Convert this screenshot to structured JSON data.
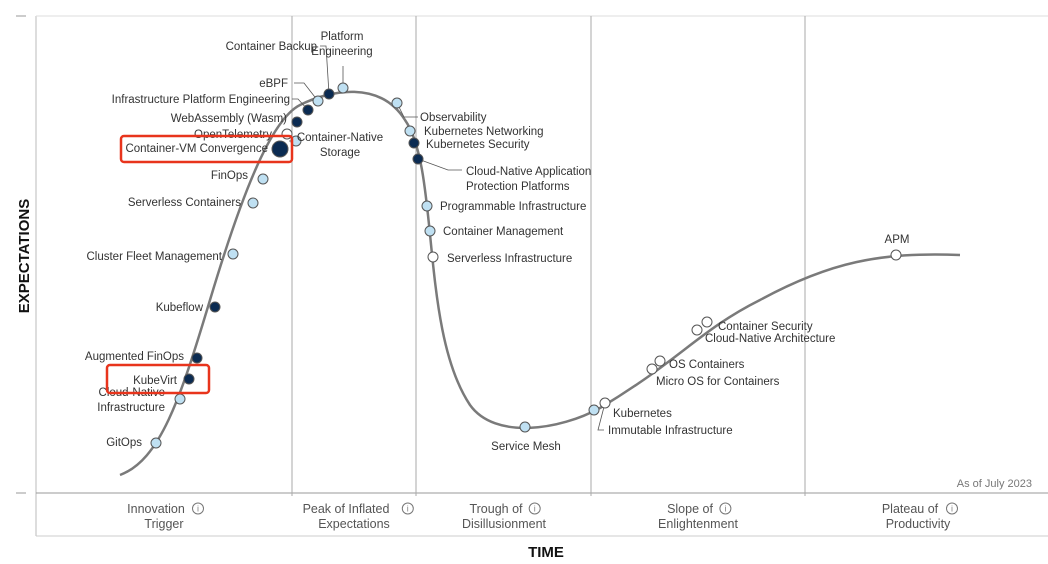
{
  "chart_data": {
    "type": "scatter",
    "xlabel": "TIME",
    "ylabel": "EXPECTATIONS",
    "as_of": "As of July 2023",
    "phases": [
      {
        "line1": "Innovation",
        "line2": "Trigger"
      },
      {
        "line1": "Peak of Inflated",
        "line2": "Expectations"
      },
      {
        "line1": "Trough of",
        "line2": "Disillusionment"
      },
      {
        "line1": "Slope of",
        "line2": "Enlightenment"
      },
      {
        "line1": "Plateau of",
        "line2": "Productivity"
      }
    ],
    "colors": {
      "curve": "#7a7a7a",
      "dark": "#0b2b52",
      "light": "#bfe0f2",
      "white": "#ffffff",
      "highlight": "#e8341c"
    },
    "points": [
      {
        "label": "GitOps",
        "type": "light"
      },
      {
        "label": "Cloud-Native\nInfrastructure",
        "type": "light"
      },
      {
        "label": "KubeVirt",
        "type": "dark",
        "highlight": true
      },
      {
        "label": "Augmented FinOps",
        "type": "dark"
      },
      {
        "label": "Kubeflow",
        "type": "dark"
      },
      {
        "label": "Cluster Fleet Management",
        "type": "light"
      },
      {
        "label": "Serverless Containers",
        "type": "light"
      },
      {
        "label": "FinOps",
        "type": "light"
      },
      {
        "label": "Container-VM Convergence",
        "type": "dark",
        "big": true,
        "highlight": true
      },
      {
        "label": "OpenTelemetry",
        "type": "white"
      },
      {
        "label": "WebAssembly (Wasm)",
        "type": "dark"
      },
      {
        "label": "Infrastructure Platform Engineering",
        "type": "dark"
      },
      {
        "label": "eBPF",
        "type": "light"
      },
      {
        "label": "Container Backup",
        "type": "dark"
      },
      {
        "label": "Platform\nEngineering",
        "type": "light"
      },
      {
        "label": "Container-Native\nStorage",
        "type": "light"
      },
      {
        "label": "Observability",
        "type": "light"
      },
      {
        "label": "Kubernetes Networking",
        "type": "light"
      },
      {
        "label": "Kubernetes Security",
        "type": "dark"
      },
      {
        "label": "Cloud-Native Application\nProtection Platforms",
        "type": "dark"
      },
      {
        "label": "Programmable Infrastructure",
        "type": "light"
      },
      {
        "label": "Container Management",
        "type": "light"
      },
      {
        "label": "Serverless Infrastructure",
        "type": "white"
      },
      {
        "label": "Service Mesh",
        "type": "light"
      },
      {
        "label": "Kubernetes",
        "type": "light"
      },
      {
        "label": "Immutable Infrastructure",
        "type": "white"
      },
      {
        "label": "Micro OS for Containers",
        "type": "white"
      },
      {
        "label": "OS Containers",
        "type": "white"
      },
      {
        "label": "Cloud-Native Architecture",
        "type": "white"
      },
      {
        "label": "Container Security",
        "type": "white"
      },
      {
        "label": "APM",
        "type": "white"
      }
    ]
  }
}
